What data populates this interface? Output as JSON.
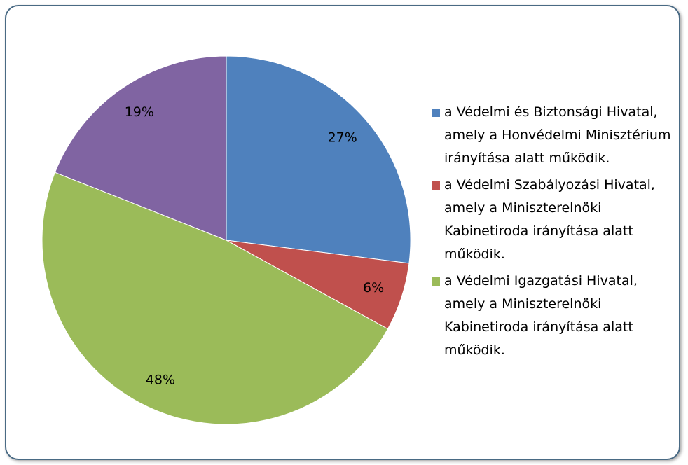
{
  "chart_data": {
    "type": "pie",
    "categories": [
      "a Védelmi és Biztonsági Hivatal, amely a Honvédelmi Minisztérium irányítása alatt működik.",
      "a Védelmi Szabályozási Hivatal, amely a Miniszterelnöki Kabinetiroda irányítása alatt működik.",
      "a Védelmi Igazgatási Hivatal, amely a Miniszterelnöki Kabinetiroda irányítása alatt működik.",
      null
    ],
    "values": [
      27,
      6,
      48,
      19
    ],
    "value_labels": [
      "27%",
      "6%",
      "48%",
      "19%"
    ],
    "colors": [
      "#4f81bd",
      "#c0504d",
      "#9bbb59",
      "#8064a2"
    ],
    "legend": "right"
  }
}
